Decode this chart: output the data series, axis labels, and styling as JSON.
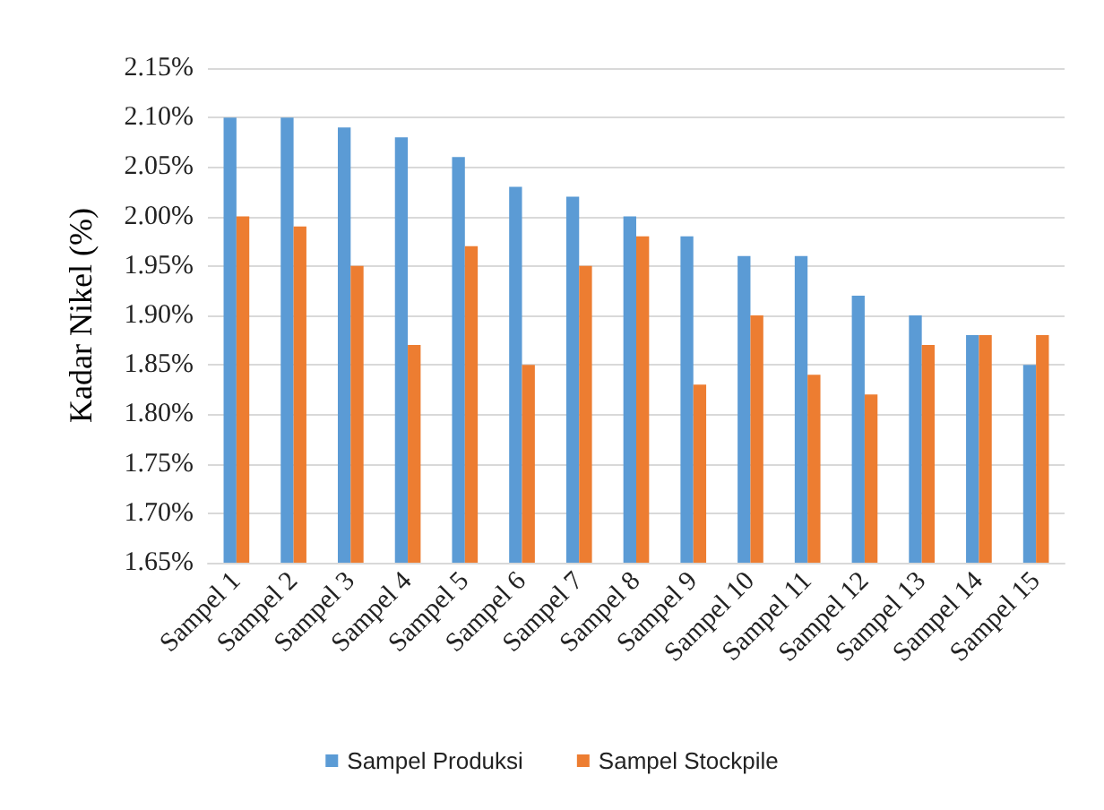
{
  "chart_data": {
    "type": "bar",
    "ylabel": "Kadar Nikel (%)",
    "categories": [
      "Sampel 1",
      "Sampel 2",
      "Sampel 3",
      "Sampel 4",
      "Sampel 5",
      "Sampel 6",
      "Sampel 7",
      "Sampel 8",
      "Sampel 9",
      "Sampel 10",
      "Sampel 11",
      "Sampel 12",
      "Sampel 13",
      "Sampel 14",
      "Sampel 15"
    ],
    "series": [
      {
        "name": "Sampel Produksi",
        "color": "#5b9bd5",
        "values": [
          2.1,
          2.1,
          2.09,
          2.08,
          2.06,
          2.03,
          2.02,
          2.0,
          1.98,
          1.96,
          1.96,
          1.92,
          1.9,
          1.88,
          1.85
        ]
      },
      {
        "name": "Sampel Stockpile",
        "color": "#ed7d31",
        "values": [
          2.0,
          1.99,
          1.95,
          1.87,
          1.97,
          1.85,
          1.95,
          1.98,
          1.83,
          1.9,
          1.84,
          1.82,
          1.87,
          1.88,
          1.88
        ]
      }
    ],
    "ylim": [
      1.65,
      2.15
    ],
    "yticks": [
      {
        "value": 1.65,
        "label": "1.65%"
      },
      {
        "value": 1.7,
        "label": "1.70%"
      },
      {
        "value": 1.75,
        "label": "1.75%"
      },
      {
        "value": 1.8,
        "label": "1.80%"
      },
      {
        "value": 1.85,
        "label": "1.85%"
      },
      {
        "value": 1.9,
        "label": "1.90%"
      },
      {
        "value": 1.95,
        "label": "1.95%"
      },
      {
        "value": 2.0,
        "label": "2.00%"
      },
      {
        "value": 2.05,
        "label": "2.05%"
      },
      {
        "value": 2.1,
        "label": "2.10%"
      },
      {
        "value": 2.15,
        "label": "2.15%"
      }
    ],
    "grid": "y",
    "legend": "bottom"
  }
}
